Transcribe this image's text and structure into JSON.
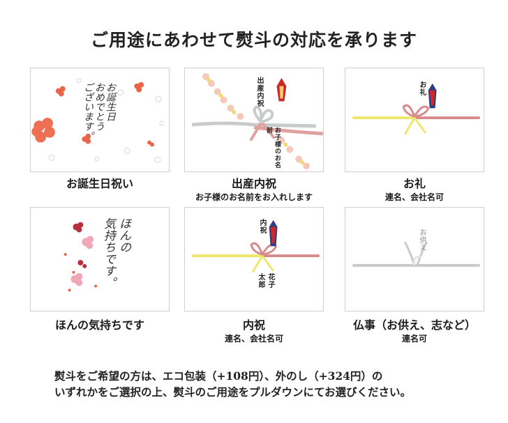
{
  "title": "ご用途にあわせて熨斗の対応を承ります",
  "cards": [
    {
      "caption": "お誕生日祝い",
      "sub": "",
      "art_text_lines": [
        "お誕生日",
        "おめでとう",
        "ございます。"
      ]
    },
    {
      "caption": "出産内祝",
      "sub": "お子様のお名前をお入れします",
      "noshi_top": "出産内祝",
      "noshi_bottom": "お子様のお名前"
    },
    {
      "caption": "お礼",
      "sub": "連名、会社名可",
      "noshi_top": "お礼"
    },
    {
      "caption": "ほんの気持ちです",
      "sub": "",
      "art_text_lines": [
        "ほんの",
        "気持ちです。"
      ]
    },
    {
      "caption": "内祝",
      "sub": "連名、会社名可",
      "noshi_top": "内祝",
      "noshi_bottom_right": "花子",
      "noshi_bottom_left": "太郎"
    },
    {
      "caption": "仏事（お供え、志など）",
      "sub": "連名可",
      "noshi_top": "お供え"
    }
  ],
  "note": {
    "line1": "熨斗をご希望の方は、エコ包装（+108円）、外のし（+324円）の",
    "line2": "いずれかをご選択の上、熨斗のご用途をプルダウンにてお選びください。"
  },
  "colors": {
    "flower_red": "#e8654a",
    "flower_pink": "#f2a9b5",
    "ribbon_red": "#d88a8a",
    "ribbon_yellow": "#efe56a",
    "ribbon_gray": "#b8b8b8",
    "noshi_red": "#cc2a2a",
    "noshi_navy": "#2e3c86"
  }
}
